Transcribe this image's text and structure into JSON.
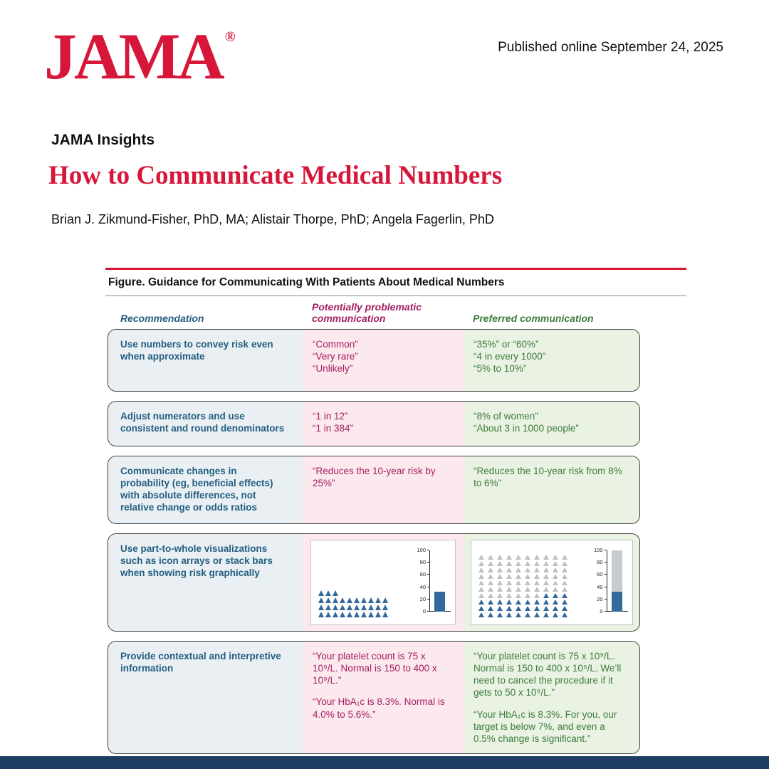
{
  "page": {
    "logo": "JAMA",
    "registered_mark": "®",
    "published": "Published online September 24, 2025",
    "section_label": "JAMA Insights",
    "title": "How to Communicate Medical Numbers",
    "authors": "Brian J. Zikmund-Fisher, PhD, MA; Alistair Thorpe, PhD; Angela Fagerlin, PhD"
  },
  "figure": {
    "title": "Figure. Guidance for Communicating With Patients About Medical Numbers",
    "columns": {
      "recommendation": "Recommendation",
      "problematic": "Potentially problematic communication",
      "preferred": "Preferred communication"
    },
    "rows": [
      {
        "recommendation": "Use numbers to convey risk even when approximate",
        "problematic": [
          "“Common”",
          "“Very rare”",
          "“Unlikely”"
        ],
        "preferred": [
          "“35%” or “60%”",
          "“4 in every 1000”",
          "“5% to 10%”"
        ]
      },
      {
        "recommendation": "Adjust numerators and use consistent and round denominators",
        "problematic": [
          "“1 in 12”",
          "“1 in 384”"
        ],
        "preferred": [
          "“8% of women”",
          "“About 3 in 1000 people”"
        ]
      },
      {
        "recommendation": "Communicate changes in probability (eg, beneficial effects) with absolute differences, not relative change or odds ratios",
        "problematic": [
          "“Reduces the 10-year risk by 25%”"
        ],
        "preferred": [
          "“Reduces the 10-year risk from 8% to 6%”"
        ]
      },
      {
        "recommendation": "Use part-to-whole visualizations such as icon arrays or stack bars when showing risk graphically"
      },
      {
        "recommendation": "Provide contextual and interpretive information",
        "problematic": [
          "“Your platelet count is 75 x 10⁹/L. Normal is 150 to 400 x 10⁹/L.”",
          "“Your HbA₁c is 8.3%. Normal is 4.0% to 5.6%.”"
        ],
        "preferred": [
          "“Your platelet count is 75 x 10⁹/L. Normal is 150 to 400 x 10⁹/L. We’ll need to cancel the procedure if it gets to 50 x 10⁹/L.”",
          "“Your HbA₁c is 8.3%. For you, our target is below 7%, and even a 0.5% change is significant.”"
        ]
      }
    ]
  },
  "chart_data": [
    {
      "type": "bar",
      "panel": "potentially_problematic",
      "title": "Icon array of risk count only, with single bar chart",
      "icon_rows": [
        3,
        10,
        10,
        10
      ],
      "icon_total_shown": 33,
      "icon_color": "#33689b",
      "bar": {
        "value": 33,
        "color": "#33689b"
      },
      "ylim": [
        0,
        100
      ],
      "yticks": [
        0,
        20,
        40,
        60,
        80,
        100
      ]
    },
    {
      "type": "bar",
      "panel": "preferred",
      "title": "Part-to-whole icon array (33 of 100) with stacked bar",
      "grid": {
        "columns": 10,
        "rows": 10,
        "total": 100,
        "highlighted": 33
      },
      "icon_color": "#33689b",
      "muted_color": "#bcc1c6",
      "bar": {
        "segments": [
          {
            "name": "risk",
            "value": 33,
            "color": "#33689b"
          },
          {
            "name": "remainder",
            "value": 67,
            "color": "#c8ccd1"
          }
        ]
      },
      "ylim": [
        0,
        100
      ],
      "yticks": [
        0,
        20,
        40,
        60,
        80,
        100
      ]
    }
  ]
}
